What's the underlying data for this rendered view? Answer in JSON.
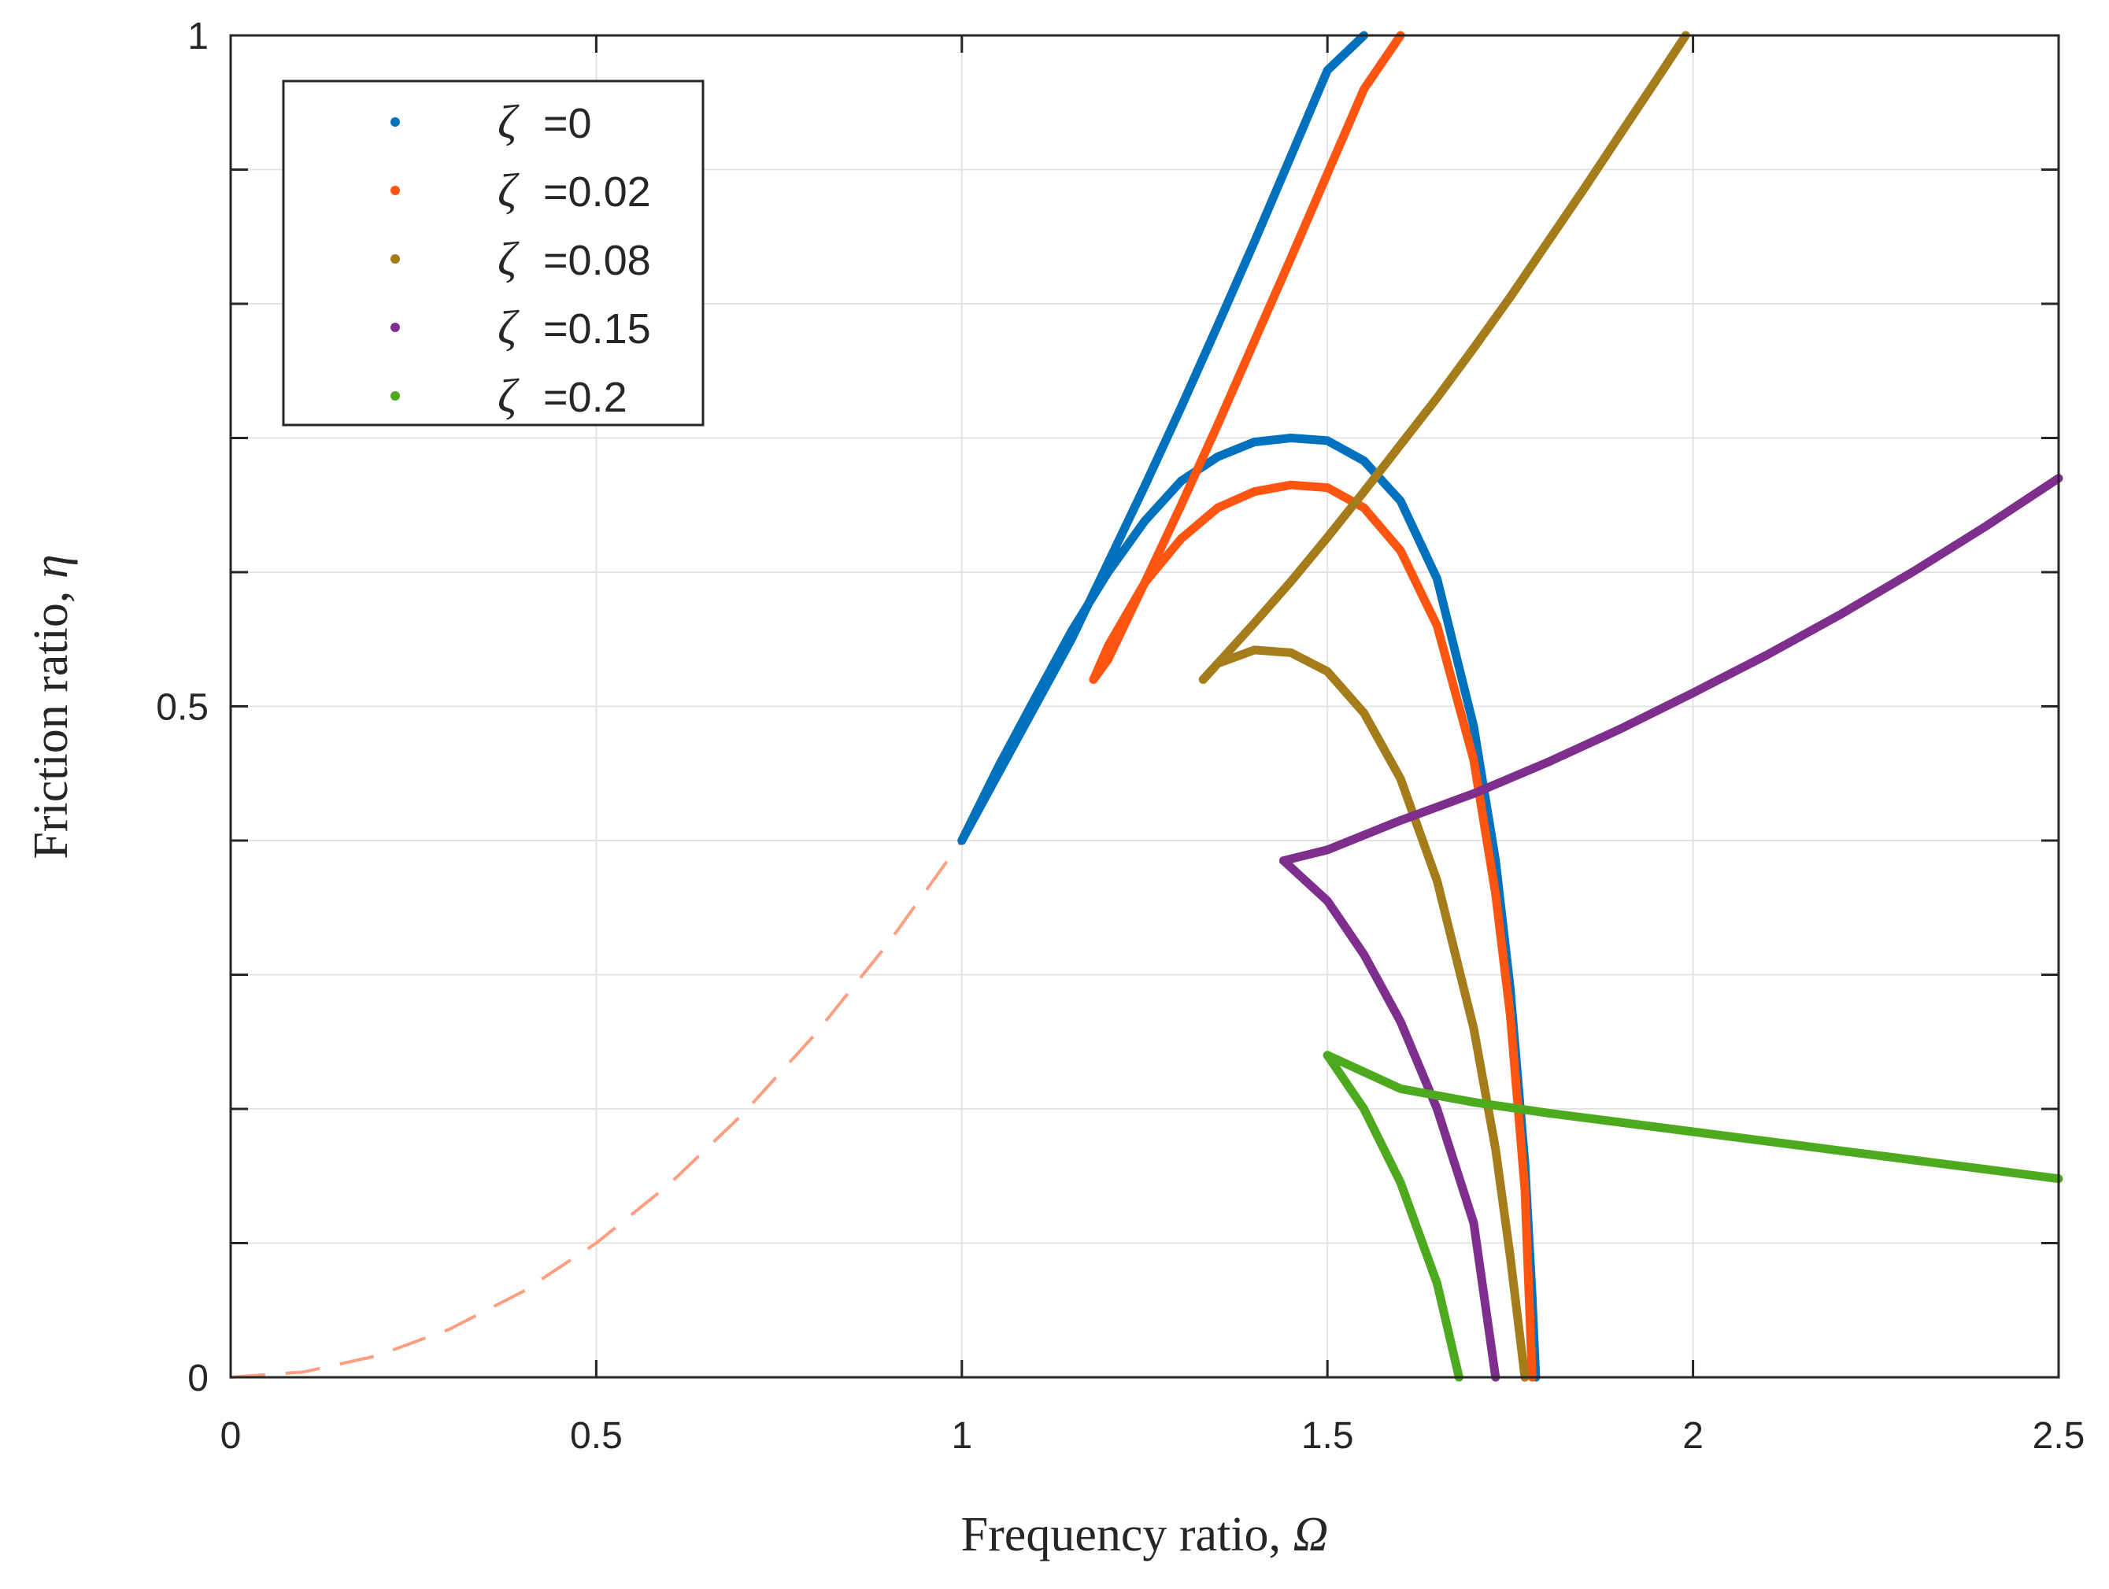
{
  "chart_data": {
    "type": "line",
    "title": "",
    "xlabel": "Frequency ratio, ",
    "xlabel_symbol": "Ω",
    "ylabel": "Friction ratio, ",
    "ylabel_symbol": "η",
    "xlim": [
      0,
      2.5
    ],
    "ylim": [
      0,
      1
    ],
    "xticks": [
      0,
      0.5,
      1,
      1.5,
      2,
      2.5
    ],
    "xtick_labels": [
      "0",
      "0.5",
      "1",
      "1.5",
      "2",
      "2.5"
    ],
    "yticks": [
      0,
      0.5,
      1
    ],
    "ytick_labels": [
      "0",
      "0.5",
      "1"
    ],
    "y_minor_grid": [
      0.1,
      0.2,
      0.3,
      0.4,
      0.6,
      0.7,
      0.8,
      0.9
    ],
    "grid": true,
    "legend_position": "top-left",
    "legend_symbol": "ζ",
    "series": [
      {
        "name": "=0",
        "color": "#0072BD",
        "branches": [
          [
            [
              1.0,
              0.4
            ],
            [
              1.05,
              0.45
            ],
            [
              1.1,
              0.5
            ],
            [
              1.15,
              0.55
            ],
            [
              1.2,
              0.607
            ],
            [
              1.25,
              0.664
            ],
            [
              1.3,
              0.723
            ],
            [
              1.35,
              0.784
            ],
            [
              1.4,
              0.846
            ],
            [
              1.45,
              0.91
            ],
            [
              1.5,
              0.974
            ],
            [
              1.55,
              1.0
            ]
          ],
          [
            [
              1.0,
              0.4
            ],
            [
              1.05,
              0.455
            ],
            [
              1.1,
              0.506
            ],
            [
              1.15,
              0.556
            ],
            [
              1.2,
              0.6
            ],
            [
              1.25,
              0.638
            ],
            [
              1.3,
              0.668
            ],
            [
              1.35,
              0.686
            ],
            [
              1.4,
              0.697
            ],
            [
              1.45,
              0.7
            ],
            [
              1.5,
              0.698
            ],
            [
              1.55,
              0.683
            ],
            [
              1.6,
              0.653
            ],
            [
              1.65,
              0.595
            ],
            [
              1.7,
              0.485
            ],
            [
              1.73,
              0.385
            ],
            [
              1.75,
              0.29
            ],
            [
              1.77,
              0.16
            ],
            [
              1.78,
              0.06
            ],
            [
              1.785,
              0.0
            ]
          ]
        ]
      },
      {
        "name": "=0.02",
        "color": "#FF5511",
        "branches": [
          [
            [
              1.18,
              0.52
            ],
            [
              1.2,
              0.535
            ],
            [
              1.25,
              0.592
            ],
            [
              1.3,
              0.65
            ],
            [
              1.35,
              0.71
            ],
            [
              1.4,
              0.772
            ],
            [
              1.45,
              0.834
            ],
            [
              1.5,
              0.897
            ],
            [
              1.55,
              0.96
            ],
            [
              1.6,
              1.0
            ]
          ],
          [
            [
              1.18,
              0.52
            ],
            [
              1.2,
              0.545
            ],
            [
              1.25,
              0.592
            ],
            [
              1.3,
              0.625
            ],
            [
              1.35,
              0.648
            ],
            [
              1.4,
              0.66
            ],
            [
              1.45,
              0.665
            ],
            [
              1.5,
              0.663
            ],
            [
              1.55,
              0.648
            ],
            [
              1.6,
              0.616
            ],
            [
              1.65,
              0.56
            ],
            [
              1.7,
              0.46
            ],
            [
              1.73,
              0.36
            ],
            [
              1.75,
              0.27
            ],
            [
              1.77,
              0.14
            ],
            [
              1.78,
              0.0
            ]
          ]
        ]
      },
      {
        "name": "=0.08",
        "color": "#A57C1A",
        "branches": [
          [
            [
              1.33,
              0.52
            ],
            [
              1.35,
              0.532
            ],
            [
              1.4,
              0.562
            ],
            [
              1.45,
              0.593
            ],
            [
              1.5,
              0.626
            ],
            [
              1.55,
              0.66
            ],
            [
              1.6,
              0.695
            ],
            [
              1.65,
              0.73
            ],
            [
              1.7,
              0.767
            ],
            [
              1.75,
              0.805
            ],
            [
              1.8,
              0.845
            ],
            [
              1.85,
              0.885
            ],
            [
              1.9,
              0.926
            ],
            [
              1.95,
              0.967
            ],
            [
              1.99,
              1.0
            ]
          ],
          [
            [
              1.33,
              0.52
            ],
            [
              1.35,
              0.532
            ],
            [
              1.4,
              0.542
            ],
            [
              1.45,
              0.54
            ],
            [
              1.5,
              0.526
            ],
            [
              1.55,
              0.495
            ],
            [
              1.6,
              0.446
            ],
            [
              1.65,
              0.37
            ],
            [
              1.7,
              0.26
            ],
            [
              1.73,
              0.17
            ],
            [
              1.75,
              0.09
            ],
            [
              1.77,
              0.0
            ]
          ]
        ]
      },
      {
        "name": "=0.15",
        "color": "#7E2F8E",
        "branches": [
          [
            [
              1.44,
              0.385
            ],
            [
              1.5,
              0.393
            ],
            [
              1.6,
              0.415
            ],
            [
              1.7,
              0.435
            ],
            [
              1.8,
              0.458
            ],
            [
              1.9,
              0.483
            ],
            [
              2.0,
              0.51
            ],
            [
              2.1,
              0.538
            ],
            [
              2.2,
              0.568
            ],
            [
              2.3,
              0.6
            ],
            [
              2.4,
              0.634
            ],
            [
              2.5,
              0.67
            ]
          ],
          [
            [
              1.44,
              0.385
            ],
            [
              1.5,
              0.355
            ],
            [
              1.55,
              0.315
            ],
            [
              1.6,
              0.265
            ],
            [
              1.65,
              0.2
            ],
            [
              1.7,
              0.115
            ],
            [
              1.73,
              0.0
            ]
          ]
        ]
      },
      {
        "name": "=0.2",
        "color": "#4DAA1F",
        "branches": [
          [
            [
              1.5,
              0.24
            ],
            [
              1.6,
              0.215
            ],
            [
              1.7,
              0.205
            ],
            [
              1.8,
              0.197
            ],
            [
              1.9,
              0.19
            ],
            [
              2.0,
              0.183
            ],
            [
              2.1,
              0.176
            ],
            [
              2.2,
              0.169
            ],
            [
              2.3,
              0.162
            ],
            [
              2.4,
              0.155
            ],
            [
              2.5,
              0.148
            ]
          ],
          [
            [
              1.5,
              0.24
            ],
            [
              1.55,
              0.2
            ],
            [
              1.6,
              0.145
            ],
            [
              1.65,
              0.07
            ],
            [
              1.68,
              0.0
            ]
          ]
        ]
      }
    ],
    "reference_curve": {
      "style": "dashed",
      "color": "#FF9E80",
      "description_formula": "eta = 0.4 * Omega^2",
      "points": [
        [
          0,
          0
        ],
        [
          0.1,
          0.004
        ],
        [
          0.2,
          0.016
        ],
        [
          0.3,
          0.036
        ],
        [
          0.4,
          0.064
        ],
        [
          0.5,
          0.1
        ],
        [
          0.6,
          0.144
        ],
        [
          0.7,
          0.196
        ],
        [
          0.8,
          0.256
        ],
        [
          0.9,
          0.324
        ],
        [
          1.0,
          0.4
        ]
      ]
    }
  }
}
